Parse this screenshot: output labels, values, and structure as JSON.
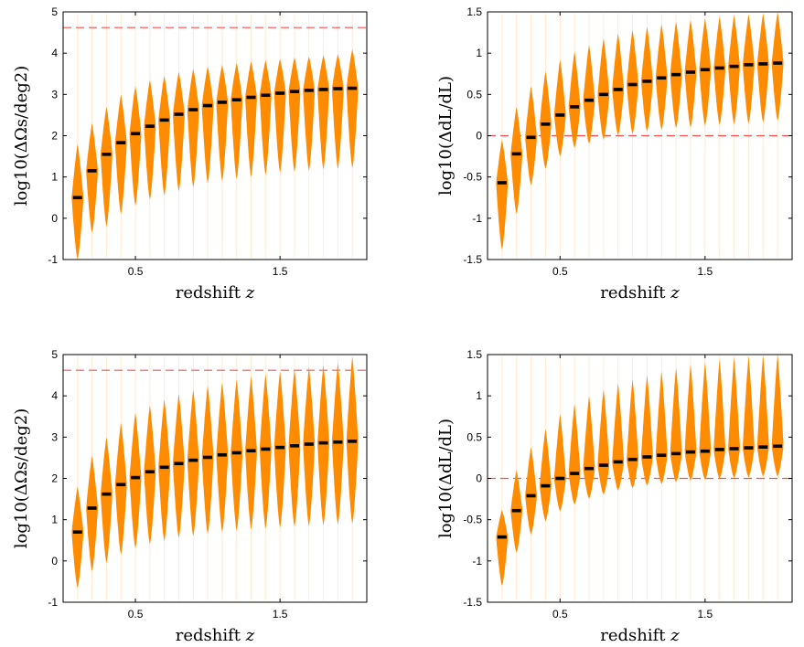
{
  "chart_data": [
    {
      "id": "top-left",
      "type": "violin",
      "xlabel": "redshift z",
      "ylabel": "log10(ΔΩs/deg2)",
      "xlim": [
        0.0,
        2.1
      ],
      "ylim": [
        -1,
        5
      ],
      "xticks": [
        0.5,
        1.5
      ],
      "xtick_labels": [
        "0.5",
        "1.5"
      ],
      "yticks": [
        -1,
        0,
        1,
        2,
        3,
        4,
        5
      ],
      "ytick_labels": [
        "-1",
        "0",
        "1",
        "2",
        "3",
        "4",
        "5"
      ],
      "reference_line": 4.62,
      "reference_color": "#ff4d4d",
      "violin_color": "#ff8c00",
      "median_color": "#000000",
      "x": [
        0.1,
        0.2,
        0.3,
        0.4,
        0.5,
        0.6,
        0.7,
        0.8,
        0.9,
        1.0,
        1.1,
        1.2,
        1.3,
        1.4,
        1.5,
        1.6,
        1.7,
        1.8,
        1.9,
        2.0
      ],
      "medians": [
        0.5,
        1.15,
        1.55,
        1.83,
        2.05,
        2.23,
        2.38,
        2.52,
        2.63,
        2.73,
        2.81,
        2.87,
        2.93,
        2.98,
        3.03,
        3.07,
        3.1,
        3.12,
        3.14,
        3.15
      ],
      "lower": [
        -1.0,
        -0.35,
        -0.2,
        0.1,
        0.3,
        0.45,
        0.55,
        0.65,
        0.75,
        0.85,
        0.9,
        0.95,
        1.0,
        1.05,
        1.1,
        1.12,
        1.15,
        1.18,
        1.2,
        1.22
      ],
      "upper": [
        1.8,
        2.3,
        2.7,
        3.0,
        3.2,
        3.35,
        3.45,
        3.55,
        3.62,
        3.68,
        3.72,
        3.76,
        3.8,
        3.83,
        3.86,
        3.9,
        3.92,
        3.95,
        3.98,
        4.1
      ]
    },
    {
      "id": "top-right",
      "type": "violin",
      "xlabel": "redshift z",
      "ylabel": "log10(ΔdL/dL)",
      "xlim": [
        0.0,
        2.1
      ],
      "ylim": [
        -1.5,
        1.5
      ],
      "xticks": [
        0.5,
        1.5
      ],
      "xtick_labels": [
        "0.5",
        "1.5"
      ],
      "yticks": [
        -1.5,
        -1,
        -0.5,
        0,
        0.5,
        1,
        1.5
      ],
      "ytick_labels": [
        "-1.5",
        "-1",
        "-0.5",
        "0",
        "0.5",
        "1",
        "1.5"
      ],
      "reference_line": 0,
      "reference_color": "#ff4d4d",
      "violin_color": "#ff8c00",
      "median_color": "#000000",
      "x": [
        0.1,
        0.2,
        0.3,
        0.4,
        0.5,
        0.6,
        0.7,
        0.8,
        0.9,
        1.0,
        1.1,
        1.2,
        1.3,
        1.4,
        1.5,
        1.6,
        1.7,
        1.8,
        1.9,
        2.0
      ],
      "medians": [
        -0.57,
        -0.22,
        -0.02,
        0.14,
        0.25,
        0.35,
        0.43,
        0.5,
        0.56,
        0.62,
        0.66,
        0.7,
        0.74,
        0.77,
        0.8,
        0.82,
        0.84,
        0.86,
        0.87,
        0.88
      ],
      "lower": [
        -1.38,
        -0.95,
        -0.6,
        -0.4,
        -0.25,
        -0.15,
        -0.1,
        -0.05,
        0.0,
        0.02,
        0.05,
        0.07,
        0.09,
        0.1,
        0.12,
        0.13,
        0.14,
        0.15,
        0.16,
        0.18
      ],
      "upper": [
        -0.05,
        0.35,
        0.6,
        0.78,
        0.92,
        1.02,
        1.1,
        1.18,
        1.24,
        1.28,
        1.32,
        1.35,
        1.38,
        1.4,
        1.42,
        1.44,
        1.46,
        1.47,
        1.48,
        1.5
      ]
    },
    {
      "id": "bottom-left",
      "type": "violin",
      "xlabel": "redshift z",
      "ylabel": "log10(ΔΩs/deg2)",
      "xlim": [
        0.0,
        2.1
      ],
      "ylim": [
        -1,
        5
      ],
      "xticks": [
        0.5,
        1.5
      ],
      "xtick_labels": [
        "0.5",
        "1.5"
      ],
      "yticks": [
        -1,
        0,
        1,
        2,
        3,
        4,
        5
      ],
      "ytick_labels": [
        "-1",
        "0",
        "1",
        "2",
        "3",
        "4",
        "5"
      ],
      "reference_line": 4.62,
      "reference_color": "#ff4d4d",
      "violin_color": "#ff8c00",
      "median_color": "#000000",
      "x": [
        0.1,
        0.2,
        0.3,
        0.4,
        0.5,
        0.6,
        0.7,
        0.8,
        0.9,
        1.0,
        1.1,
        1.2,
        1.3,
        1.4,
        1.5,
        1.6,
        1.7,
        1.8,
        1.9,
        2.0
      ],
      "medians": [
        0.7,
        1.28,
        1.62,
        1.85,
        2.02,
        2.16,
        2.27,
        2.36,
        2.44,
        2.51,
        2.57,
        2.62,
        2.67,
        2.71,
        2.75,
        2.79,
        2.83,
        2.86,
        2.88,
        2.9
      ],
      "lower": [
        -0.65,
        -0.25,
        -0.05,
        0.15,
        0.3,
        0.4,
        0.48,
        0.55,
        0.6,
        0.65,
        0.7,
        0.73,
        0.76,
        0.78,
        0.8,
        0.82,
        0.84,
        0.86,
        0.88,
        0.9
      ],
      "upper": [
        1.8,
        2.55,
        3.0,
        3.35,
        3.6,
        3.78,
        3.92,
        4.05,
        4.15,
        4.25,
        4.33,
        4.4,
        4.47,
        4.53,
        4.6,
        4.65,
        4.7,
        4.75,
        4.8,
        4.95
      ]
    },
    {
      "id": "bottom-right",
      "type": "violin",
      "xlabel": "redshift z",
      "ylabel": "log10(ΔdL/dL)",
      "xlim": [
        0.0,
        2.1
      ],
      "ylim": [
        -1.5,
        1.5
      ],
      "xticks": [
        0.5,
        1.5
      ],
      "xtick_labels": [
        "0.5",
        "1.5"
      ],
      "yticks": [
        -1.5,
        -1,
        -0.5,
        0,
        0.5,
        1,
        1.5
      ],
      "ytick_labels": [
        "-1.5",
        "-1",
        "-0.5",
        "0",
        "0.5",
        "1",
        "1.5"
      ],
      "reference_line": 0,
      "reference_color": "#ff4d4d",
      "violin_color": "#ff8c00",
      "median_color": "#000000",
      "x": [
        0.1,
        0.2,
        0.3,
        0.4,
        0.5,
        0.6,
        0.7,
        0.8,
        0.9,
        1.0,
        1.1,
        1.2,
        1.3,
        1.4,
        1.5,
        1.6,
        1.7,
        1.8,
        1.9,
        2.0
      ],
      "medians": [
        -0.71,
        -0.39,
        -0.21,
        -0.09,
        0.0,
        0.06,
        0.12,
        0.16,
        0.2,
        0.23,
        0.26,
        0.28,
        0.3,
        0.32,
        0.33,
        0.35,
        0.36,
        0.37,
        0.38,
        0.39
      ],
      "lower": [
        -1.3,
        -0.9,
        -0.68,
        -0.52,
        -0.4,
        -0.32,
        -0.25,
        -0.2,
        -0.15,
        -0.12,
        -0.09,
        -0.07,
        -0.05,
        -0.03,
        -0.02,
        -0.01,
        0.0,
        0.01,
        0.02,
        0.02
      ],
      "upper": [
        -0.38,
        0.1,
        0.38,
        0.6,
        0.78,
        0.9,
        1.0,
        1.08,
        1.15,
        1.2,
        1.25,
        1.3,
        1.34,
        1.38,
        1.41,
        1.44,
        1.46,
        1.48,
        1.49,
        1.5
      ]
    }
  ]
}
